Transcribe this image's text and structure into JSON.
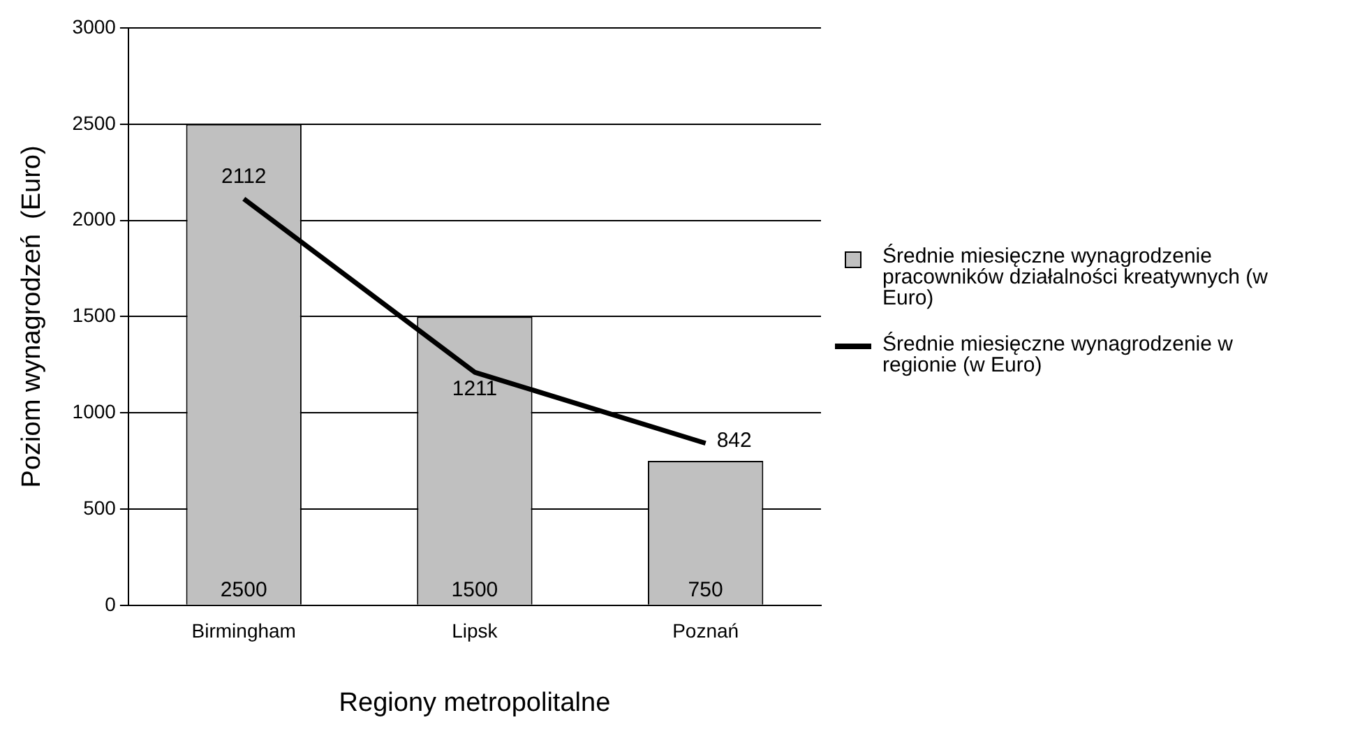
{
  "chart_data": {
    "type": "bar",
    "xlabel": "Regiony metropolitalne",
    "ylabel": "Poziom wynagrodzeń  (Euro)",
    "categories": [
      "Birmingham",
      "Lipsk",
      "Poznań"
    ],
    "series": [
      {
        "name": "Średnie miesięczne wynagrodzenie pracowników działalności kreatywnych (w Euro)",
        "color": "#c0c0c0",
        "values": [
          2500,
          1500,
          750
        ]
      },
      {
        "name": "Średnie miesięczne wynagrodzenie w regionie (w Euro)",
        "type": "line",
        "color": "#000000",
        "values": [
          2112,
          1211,
          842
        ]
      }
    ],
    "ylim": [
      0,
      3000
    ],
    "yticks": [
      0,
      500,
      1000,
      1500,
      2000,
      2500,
      3000
    ],
    "grid": "y",
    "legend": "right",
    "data_labels": true,
    "marker": "none"
  }
}
